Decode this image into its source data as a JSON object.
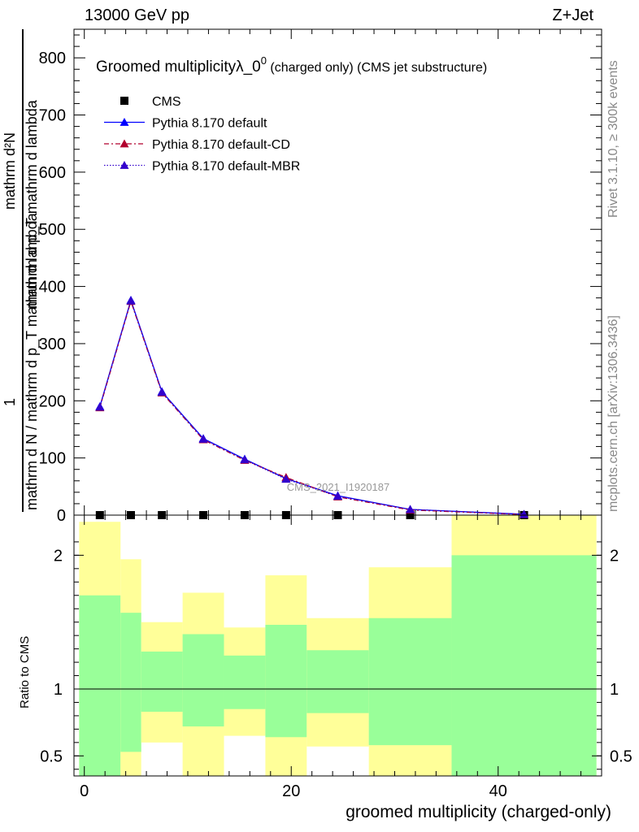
{
  "header": {
    "energy": "13000 GeV pp",
    "process": "Z+Jet"
  },
  "side_text": {
    "rivet": "Rivet 3.1.10, ≥ 300k events",
    "mcplots": "mcplots.cern.ch [arXiv:1306.3436]"
  },
  "chart_data": [
    {
      "type": "line",
      "title": "Groomed multiplicityλ_0⁰ (charged only) (CMS jet substructure)",
      "title_main": "Groomed multiplicityλ_0",
      "title_sup": "0",
      "title_small": " (charged only) (CMS jet substructure)",
      "ylabel_num": "1",
      "ylabel_den": "mathrm d N / mathrm d p_T mathrm d lambda",
      "ylabel_top": "mathrm d²N",
      "ylabel_bot": "mathrm d p_T mathrm d lambda",
      "watermark": "CMS_2021_I1920187",
      "xlim": [
        -1,
        50
      ],
      "ylim": [
        0,
        850
      ],
      "yticks": [
        0,
        100,
        200,
        300,
        400,
        500,
        600,
        700,
        800
      ],
      "legend_position": "top-left",
      "x": [
        1.5,
        4.5,
        7.5,
        11.5,
        15.5,
        19.5,
        24.5,
        31.5,
        42.5
      ],
      "series": [
        {
          "name": "CMS",
          "values": [
            0,
            0,
            0,
            0,
            0,
            0,
            0,
            0,
            0
          ],
          "color": "#000000",
          "style": "marker"
        },
        {
          "name": "Pythia 8.170 default",
          "values": [
            190,
            376,
            216,
            134,
            98,
            64,
            34,
            10,
            1.5
          ],
          "color": "#0000ff",
          "style": "solid"
        },
        {
          "name": "Pythia 8.170 default-CD",
          "values": [
            188,
            374,
            214,
            132,
            96,
            66,
            32,
            9,
            1
          ],
          "color": "#b2002e",
          "style": "dashdot"
        },
        {
          "name": "Pythia 8.170 default-MBR",
          "values": [
            189,
            375,
            215,
            133,
            97,
            63,
            33,
            10,
            1.2
          ],
          "color": "#3300cc",
          "style": "dotted"
        }
      ]
    },
    {
      "type": "area",
      "title": "",
      "ylabel": "Ratio to CMS",
      "xlabel": "groomed multiplicity (charged-only)",
      "xlim": [
        -1,
        50
      ],
      "ylim": [
        0.35,
        2.3
      ],
      "yticks": [
        0.5,
        1,
        2
      ],
      "ytick_labels": [
        "0.5",
        "1",
        "2"
      ],
      "xticks": [
        0,
        20,
        40
      ],
      "xtick_labels": [
        "0",
        "20",
        "40"
      ],
      "bins": [
        {
          "lo": -0.5,
          "hi": 3.5,
          "g_lo": 0,
          "g_hi": 1.7,
          "y_lo": 0,
          "y_hi": 2.25
        },
        {
          "lo": 3.5,
          "hi": 5.5,
          "g_lo": 0.53,
          "g_hi": 1.57,
          "y_lo": 0,
          "y_hi": 1.97
        },
        {
          "lo": 5.5,
          "hi": 9.5,
          "g_lo": 0.83,
          "g_hi": 1.28,
          "y_lo": 0.6,
          "y_hi": 1.5
        },
        {
          "lo": 9.5,
          "hi": 13.5,
          "g_lo": 0.72,
          "g_hi": 1.41,
          "y_lo": 0,
          "y_hi": 1.72
        },
        {
          "lo": 13.5,
          "hi": 17.5,
          "g_lo": 0.85,
          "g_hi": 1.25,
          "y_lo": 0.65,
          "y_hi": 1.46
        },
        {
          "lo": 17.5,
          "hi": 21.5,
          "g_lo": 0.64,
          "g_hi": 1.48,
          "y_lo": 0,
          "y_hi": 1.85
        },
        {
          "lo": 21.5,
          "hi": 27.5,
          "g_lo": 0.82,
          "g_hi": 1.29,
          "y_lo": 0.57,
          "y_hi": 1.53
        },
        {
          "lo": 27.5,
          "hi": 35.5,
          "g_lo": 0.58,
          "g_hi": 1.53,
          "y_lo": 0,
          "y_hi": 1.91
        },
        {
          "lo": 35.5,
          "hi": 49.5,
          "g_lo": 0,
          "g_hi": 2.0,
          "y_lo": 0,
          "y_hi": 2.3
        }
      ],
      "reference_line": 1,
      "colors": {
        "inner": "#99ff99",
        "outer": "#ffff99"
      }
    }
  ]
}
